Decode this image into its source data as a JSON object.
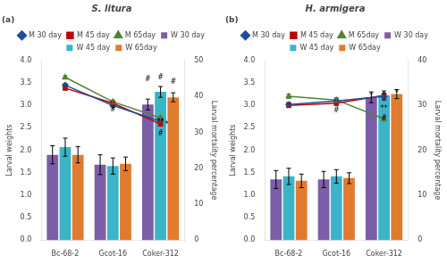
{
  "chart_data": [
    {
      "type": "bar",
      "title": "S. litura",
      "subtitle": "(a)",
      "categories": [
        "Bc-68-2",
        "Gcot-16",
        "Coker-312"
      ],
      "ylabel": "Larval weights",
      "y2label": "Larval mortality percentage",
      "ylim": [
        0,
        4.0
      ],
      "yticks": [
        {
          "value": 0,
          "label": "0.0"
        },
        0.5,
        {
          "value": 1,
          "label": "1.0"
        },
        1.5,
        {
          "value": 2,
          "label": "2.0"
        },
        2.5,
        {
          "value": 3,
          "label": "3.0"
        },
        3.5,
        {
          "value": 4,
          "label": "4.0"
        }
      ],
      "y2lim": [
        0,
        50
      ],
      "y2ticks": [
        0,
        10,
        20,
        30,
        40,
        50
      ],
      "grid": false,
      "legend": "top",
      "series": [
        {
          "name": "W 30 day",
          "type": "bar",
          "color": "#7b5ea7",
          "values": [
            1.9,
            1.68,
            3.02
          ],
          "errors": [
            0.2,
            0.22,
            0.12
          ]
        },
        {
          "name": "W 45 day",
          "type": "bar",
          "color": "#3cb4c8",
          "values": [
            2.07,
            1.65,
            3.3
          ],
          "errors": [
            0.2,
            0.18,
            0.12
          ]
        },
        {
          "name": "W 65day",
          "type": "bar",
          "color": "#e07b30",
          "values": [
            1.9,
            1.7,
            3.18
          ],
          "errors": [
            0.18,
            0.15,
            0.1
          ]
        },
        {
          "name": "M 30 day",
          "type": "line",
          "axis": "y2",
          "color": "#1f4e99",
          "marker": "diamond",
          "values": [
            43.1,
            37.5,
            33.1
          ],
          "errors": [
            0.5,
            0.5,
            0.5
          ]
        },
        {
          "name": "M 45 day",
          "type": "line",
          "axis": "y2",
          "color": "#c00000",
          "marker": "square",
          "values": [
            42.3,
            38.1,
            32.3
          ],
          "errors": [
            0.5,
            0.5,
            0.5
          ]
        },
        {
          "name": "M 65day",
          "type": "line",
          "axis": "y2",
          "color": "#548235",
          "marker": "triangle",
          "values": [
            45.3,
            38.5,
            34.0
          ],
          "errors": [
            0.5,
            0.5,
            0.5
          ]
        }
      ],
      "annotations": [
        {
          "text": "#",
          "category": "Gcot-16",
          "y": 2.82
        },
        {
          "text": "**",
          "category": "Coker-312",
          "y": 2.55
        },
        {
          "text": "*",
          "category": "Coker-312",
          "y": 2.48
        },
        {
          "text": "#",
          "category": "Coker-312",
          "y": 2.3
        },
        {
          "text": "#",
          "category": "Coker-312",
          "series": "W 30 day",
          "y": 3.5
        },
        {
          "text": "#",
          "category": "Coker-312",
          "series": "W 45 day",
          "y": 3.55
        },
        {
          "text": "#",
          "category": "Coker-312",
          "series": "W 65day",
          "y": 3.45
        }
      ]
    },
    {
      "type": "bar",
      "title": "H. armigera",
      "subtitle": "(b)",
      "categories": [
        "Bc-68-2",
        "Gcot-16",
        "Coker-312"
      ],
      "ylabel": "Larval weights",
      "y2label": "Larval mortality percentage",
      "ylim": [
        0,
        4.0
      ],
      "yticks": [
        {
          "value": 0,
          "label": "0.0"
        },
        0.5,
        {
          "value": 1,
          "label": "1.0"
        },
        1.5,
        {
          "value": 2,
          "label": "2.0"
        },
        2.5,
        {
          "value": 3,
          "label": "3.0"
        },
        3.5,
        {
          "value": 4,
          "label": "4.0"
        }
      ],
      "y2lim": [
        0,
        40
      ],
      "y2ticks": [
        0,
        10,
        20,
        30,
        40
      ],
      "grid": false,
      "legend": "top",
      "series": [
        {
          "name": "W 30 day",
          "type": "bar",
          "color": "#7b5ea7",
          "values": [
            1.35,
            1.35,
            3.18
          ],
          "errors": [
            0.2,
            0.18,
            0.12
          ]
        },
        {
          "name": "W 45 day",
          "type": "bar",
          "color": "#3cb4c8",
          "values": [
            1.42,
            1.42,
            3.22
          ],
          "errors": [
            0.18,
            0.15,
            0.1
          ]
        },
        {
          "name": "W 65day",
          "type": "bar",
          "color": "#e07b30",
          "values": [
            1.32,
            1.38,
            3.25
          ],
          "errors": [
            0.15,
            0.12,
            0.1
          ]
        },
        {
          "name": "M 30 day",
          "type": "line",
          "axis": "y2",
          "color": "#1f4e99",
          "marker": "diamond",
          "values": [
            30.2,
            31.0,
            32.0
          ],
          "errors": [
            0.5,
            0.5,
            0.5
          ]
        },
        {
          "name": "M 45 day",
          "type": "line",
          "axis": "y2",
          "color": "#c00000",
          "marker": "square",
          "values": [
            30.0,
            30.5,
            32.2
          ],
          "errors": [
            0.5,
            0.5,
            0.5
          ]
        },
        {
          "name": "M 65day",
          "type": "line",
          "axis": "y2",
          "color": "#548235",
          "marker": "triangle",
          "values": [
            32.0,
            31.2,
            27.0
          ],
          "errors": [
            0.5,
            0.5,
            0.5
          ]
        }
      ],
      "annotations": [
        {
          "text": "#",
          "category": "Gcot-16",
          "y": 2.8
        },
        {
          "text": "*",
          "category": "Coker-312",
          "series": "W 30 day",
          "y": 3.12
        },
        {
          "text": "*",
          "category": "Coker-312",
          "series": "W 45 day",
          "y": 3.15
        },
        {
          "text": "*",
          "category": "Coker-312",
          "series": "W 65day",
          "y": 3.18
        },
        {
          "text": "**",
          "category": "Coker-312",
          "y": 2.85
        },
        {
          "text": "#",
          "category": "Coker-312",
          "y": 2.62
        }
      ]
    }
  ]
}
